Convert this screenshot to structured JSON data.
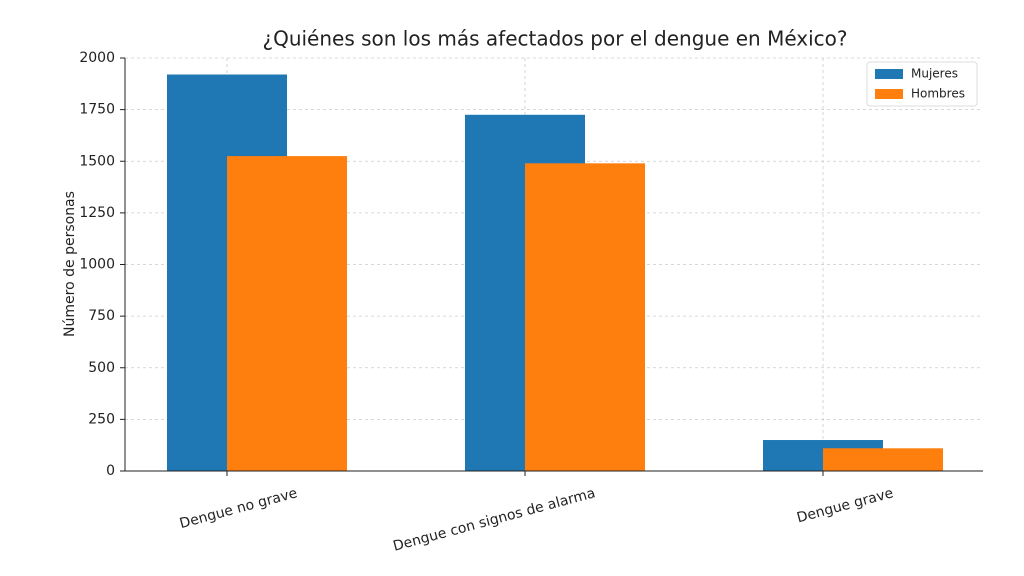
{
  "chart_data": {
    "type": "bar",
    "title": "¿Quiénes son los más afectados por el dengue en México?",
    "y_label": "Número de personas",
    "categories": [
      "Dengue no grave",
      "Dengue con signos de alarma",
      "Dengue grave"
    ],
    "series": [
      {
        "name": "Mujeres",
        "color": "#1f77b4",
        "values": [
          1920,
          1725,
          150
        ]
      },
      {
        "name": "Hombres",
        "color": "#ff7f0e",
        "values": [
          1525,
          1490,
          110
        ]
      }
    ],
    "ylim": [
      0,
      2000
    ],
    "yticks": [
      0,
      250,
      500,
      750,
      1000,
      1250,
      1500,
      1750,
      2000
    ],
    "grid": true,
    "legend": "upper right"
  }
}
